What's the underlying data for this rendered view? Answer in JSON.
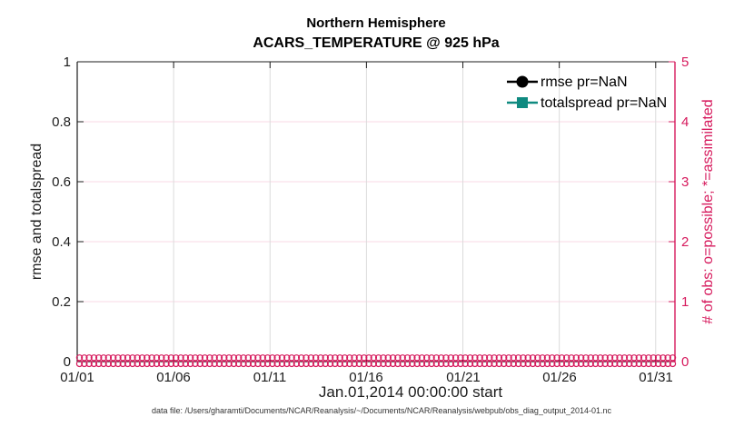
{
  "figure": {
    "title_line1": "Northern Hemisphere",
    "title_line2": "ACARS_TEMPERATURE @ 925 hPa",
    "xlabel": "Jan.01,2014 00:00:00 start",
    "ylabel_left": "rmse and totalspread",
    "ylabel_right": "# of obs: o=possible; *=assimilated",
    "caption": "data file: /Users/gharamti/Documents/NCAR/Reanalysis/~/Documents/NCAR/Reanalysis/webpub/obs_diag_output_2014-01.nc"
  },
  "legend": {
    "items": [
      {
        "label": "rmse pr=NaN",
        "color": "#000000",
        "marker": "filled-circle"
      },
      {
        "label": "totalspread pr=NaN",
        "color": "#0f8a80",
        "marker": "filled-square"
      }
    ]
  },
  "colors": {
    "left_axis": "#1c1c1c",
    "right_axis": "#d6195c",
    "grid_horizontal": "#f9d9e5",
    "grid_vertical": "#dbdbdb",
    "rmse": "#000000",
    "totalspread": "#0f8a80",
    "obs_markers": "#d6195c"
  },
  "chart_data": {
    "type": "line",
    "title": "Northern Hemisphere",
    "subtitle": "ACARS_TEMPERATURE @ 925 hPa",
    "xlabel": "Jan.01,2014 00:00:00 start",
    "ylabel_left": "rmse and totalspread",
    "ylabel_right": "# of obs: o=possible; *=assimilated",
    "x_tick_labels": [
      "01/01",
      "01/06",
      "01/11",
      "01/16",
      "01/21",
      "01/26",
      "01/31"
    ],
    "x_tick_days": [
      0,
      5,
      10,
      15,
      20,
      25,
      30
    ],
    "x_total_days": 31,
    "left_tick_labels": [
      "0",
      "0.2",
      "0.4",
      "0.6",
      "0.8",
      "1"
    ],
    "right_tick_labels": [
      "0",
      "1",
      "2",
      "3",
      "4",
      "5"
    ],
    "ylim_left": [
      0,
      1
    ],
    "ylim_right": [
      0,
      5
    ],
    "grid": true,
    "legend_position": "top-right",
    "series": [
      {
        "name": "rmse pr=NaN",
        "axis": "left",
        "marker": "filled-circle",
        "color": "#000000",
        "values": [],
        "note": "pr=NaN, no curve drawn"
      },
      {
        "name": "totalspread pr=NaN",
        "axis": "left",
        "marker": "filled-square",
        "color": "#0f8a80",
        "values": [],
        "note": "pr=NaN, no curve drawn"
      },
      {
        "name": "# of obs possible (o)",
        "axis": "right",
        "marker": "open-circle",
        "color": "#d6195c",
        "constant_value": 0,
        "n_points": 124
      },
      {
        "name": "# of obs assimilated (*)",
        "axis": "right",
        "marker": "asterisk",
        "color": "#d6195c",
        "constant_value": 0,
        "n_points": 124
      }
    ]
  }
}
